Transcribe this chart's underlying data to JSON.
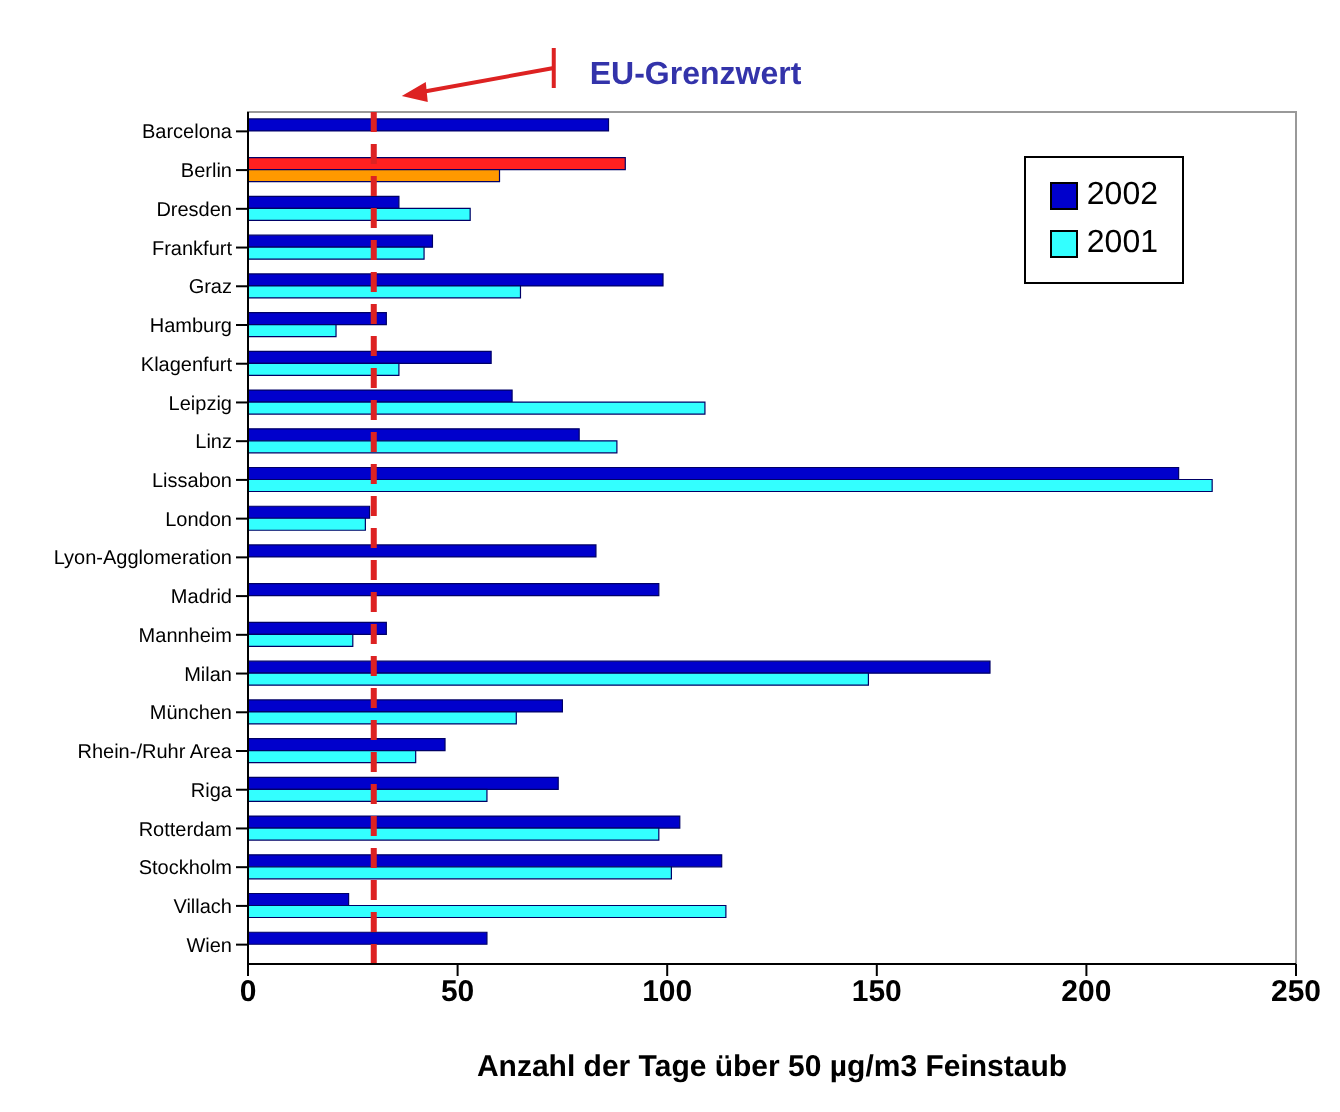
{
  "chart_data": {
    "type": "bar",
    "orientation": "horizontal",
    "xlabel": "Anzahl der Tage über 50 µg/m3 Feinstaub",
    "categories": [
      "Barcelona",
      "Berlin",
      "Dresden",
      "Frankfurt",
      "Graz",
      "Hamburg",
      "Klagenfurt",
      "Leipzig",
      "Linz",
      "Lissabon",
      "London",
      "Lyon-Agglomeration",
      "Madrid",
      "Mannheim",
      "Milan",
      "München",
      "Rhein-/Ruhr Area",
      "Riga",
      "Rotterdam",
      "Stockholm",
      "Villach",
      "Wien"
    ],
    "series": [
      {
        "name": "2002",
        "color": "#0000cc",
        "colors": [
          "#0000cc",
          "#ff2020",
          "#0000cc",
          "#0000cc",
          "#0000cc",
          "#0000cc",
          "#0000cc",
          "#0000cc",
          "#0000cc",
          "#0000cc",
          "#0000cc",
          "#0000cc",
          "#0000cc",
          "#0000cc",
          "#0000cc",
          "#0000cc",
          "#0000cc",
          "#0000cc",
          "#0000cc",
          "#0000cc",
          "#0000cc",
          "#0000cc"
        ],
        "values": [
          86,
          90,
          36,
          44,
          99,
          33,
          58,
          63,
          79,
          222,
          29,
          83,
          98,
          33,
          177,
          75,
          47,
          74,
          103,
          113,
          24,
          57
        ]
      },
      {
        "name": "2001",
        "color": "#33ffff",
        "colors": [
          "#33ffff",
          "#ff9900",
          "#33ffff",
          "#33ffff",
          "#33ffff",
          "#33ffff",
          "#33ffff",
          "#33ffff",
          "#33ffff",
          "#33ffff",
          "#33ffff",
          "#33ffff",
          "#33ffff",
          "#33ffff",
          "#33ffff",
          "#33ffff",
          "#33ffff",
          "#33ffff",
          "#33ffff",
          "#33ffff",
          "#33ffff",
          "#33ffff"
        ],
        "values": [
          null,
          60,
          53,
          42,
          65,
          21,
          36,
          109,
          88,
          230,
          28,
          null,
          null,
          25,
          148,
          64,
          40,
          57,
          98,
          101,
          114,
          null
        ]
      }
    ],
    "xlim": [
      0,
      250
    ],
    "xticks": [
      0,
      50,
      100,
      150,
      200,
      250
    ],
    "ref_lines": [
      {
        "axis": "x",
        "value": 30,
        "label": "EU-Grenzwert",
        "color": "#dd2222",
        "line_style": "dashed"
      }
    ],
    "grid": false,
    "legend": "top right"
  }
}
